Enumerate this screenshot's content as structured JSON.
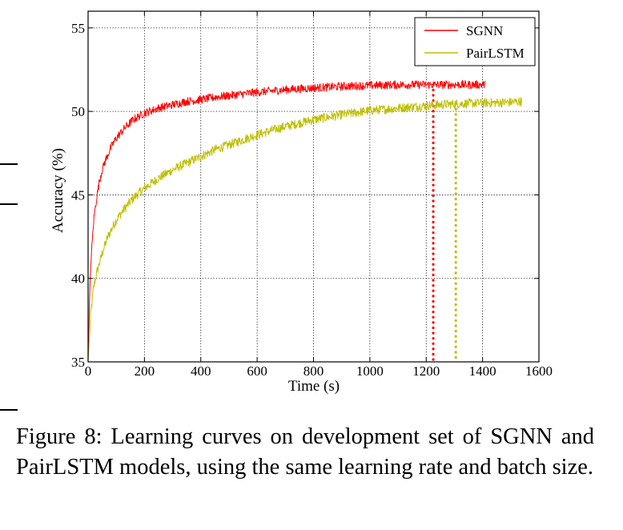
{
  "chart_data": {
    "type": "line",
    "xlabel": "Time (s)",
    "ylabel": "Accuracy (%)",
    "xlim": [
      0,
      1600
    ],
    "ylim": [
      35,
      56
    ],
    "xticks": [
      0,
      200,
      400,
      600,
      800,
      1000,
      1200,
      1400,
      1600
    ],
    "yticks": [
      35,
      40,
      45,
      50,
      55
    ],
    "grid": true,
    "legend_position": "top-right",
    "series": [
      {
        "name": "SGNN",
        "color": "#ff0000",
        "x": [
          0,
          5,
          10,
          20,
          30,
          40,
          50,
          60,
          80,
          100,
          130,
          160,
          200,
          250,
          300,
          350,
          400,
          450,
          500,
          600,
          700,
          800,
          900,
          1000,
          1100,
          1200,
          1300,
          1410
        ],
        "y": [
          35.5,
          38.5,
          41.0,
          43.5,
          44.8,
          45.8,
          46.5,
          47.0,
          47.8,
          48.4,
          49.0,
          49.5,
          49.9,
          50.2,
          50.4,
          50.6,
          50.7,
          50.85,
          50.95,
          51.15,
          51.3,
          51.4,
          51.5,
          51.55,
          51.6,
          51.6,
          51.6,
          51.6
        ],
        "noise": 0.25,
        "marker_x": 1225
      },
      {
        "name": "PairLSTM",
        "color": "#bfbf00",
        "x": [
          0,
          5,
          10,
          20,
          30,
          50,
          70,
          100,
          130,
          160,
          200,
          250,
          300,
          350,
          400,
          450,
          500,
          600,
          700,
          800,
          900,
          1000,
          1100,
          1200,
          1300,
          1400,
          1500,
          1540
        ],
        "y": [
          35.0,
          36.5,
          38.0,
          39.5,
          40.3,
          41.5,
          42.5,
          43.5,
          44.2,
          44.8,
          45.4,
          46.0,
          46.5,
          46.9,
          47.3,
          47.7,
          48.0,
          48.6,
          49.1,
          49.5,
          49.8,
          50.05,
          50.2,
          50.35,
          50.45,
          50.5,
          50.55,
          50.6
        ],
        "noise": 0.28,
        "marker_x": 1305
      }
    ]
  },
  "caption": "Figure 8:  Learning curves on development set of SGNN and PairLSTM models, using the same learning rate and batch size."
}
